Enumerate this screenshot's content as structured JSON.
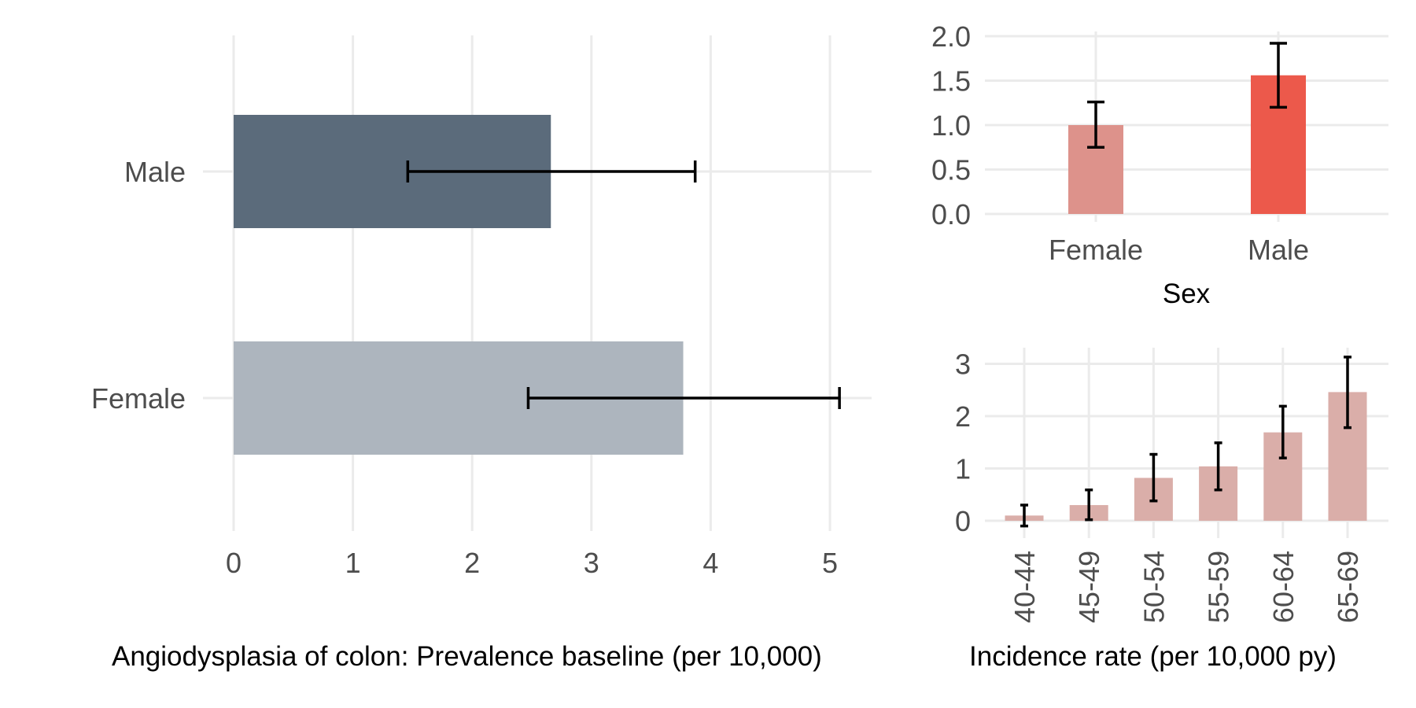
{
  "chart_data": [
    {
      "type": "bar",
      "orientation": "horizontal",
      "categories": [
        "Female",
        "Male"
      ],
      "values": [
        3.77,
        2.66
      ],
      "error_low": [
        2.47,
        1.46
      ],
      "error_high": [
        5.08,
        3.87
      ],
      "colors": [
        "#adb5be",
        "#5b6b7b"
      ],
      "xlim": [
        0,
        5.3
      ],
      "xticks": [
        "0",
        "1",
        "2",
        "3",
        "4",
        "5"
      ],
      "title": "",
      "xlabel": "Angiodysplasia of colon: Prevalence baseline (per 10,000)",
      "ylabel": "",
      "grid": true,
      "legend": "none"
    },
    {
      "type": "bar",
      "categories": [
        "Female",
        "Male"
      ],
      "values": [
        1.0,
        1.56
      ],
      "error_low": [
        0.75,
        1.2
      ],
      "error_high": [
        1.26,
        1.92
      ],
      "colors": [
        "#dd928b",
        "#ec594b"
      ],
      "ylim": [
        0,
        2.05
      ],
      "yticks": [
        "0.0",
        "0.5",
        "1.0",
        "1.5",
        "2.0"
      ],
      "title": "",
      "xlabel": "Sex",
      "ylabel": "",
      "grid": true,
      "legend": "none"
    },
    {
      "type": "bar",
      "categories": [
        "40-44",
        "45-49",
        "50-54",
        "55-59",
        "60-64",
        "65-69"
      ],
      "values": [
        0.1,
        0.3,
        0.82,
        1.04,
        1.69,
        2.46
      ],
      "error_low": [
        -0.1,
        0.02,
        0.38,
        0.59,
        1.2,
        1.78
      ],
      "error_high": [
        0.3,
        0.59,
        1.27,
        1.49,
        2.19,
        3.13
      ],
      "colors": [
        "#daaea9"
      ],
      "ylim": [
        -0.1,
        3.2
      ],
      "yticks": [
        "0",
        "1",
        "2",
        "3"
      ],
      "title": "",
      "xlabel": "Incidence rate (per 10,000 py)",
      "ylabel": "",
      "grid": true,
      "legend": "none"
    }
  ]
}
